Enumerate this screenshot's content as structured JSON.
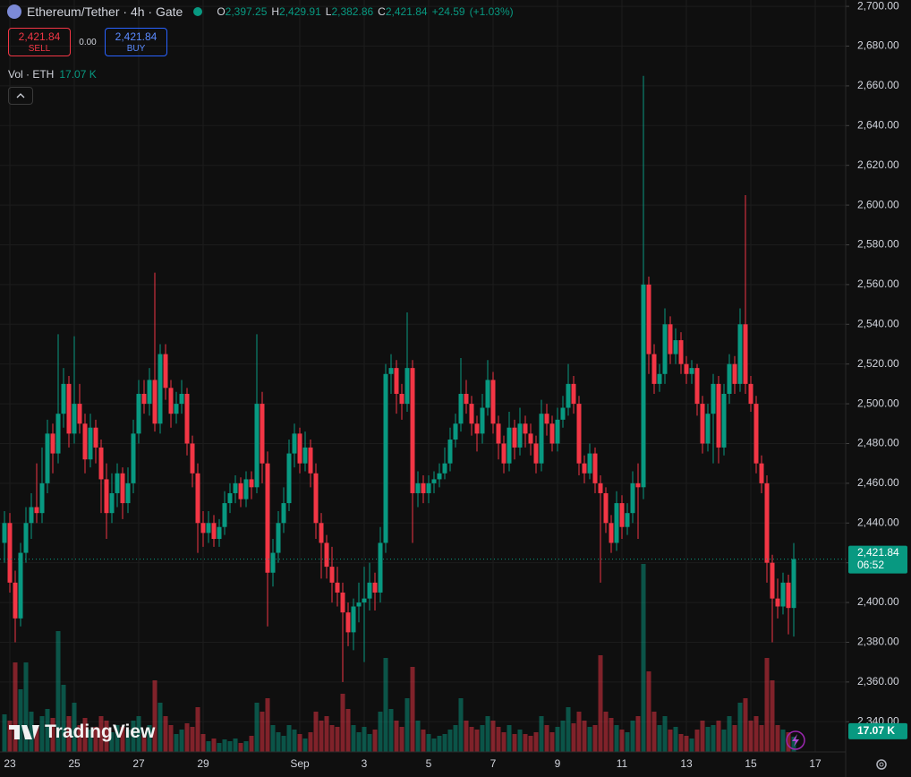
{
  "chart_data": {
    "type": "candlestick",
    "title": "Ethereum/Tether · 4h · Gate",
    "ohlc": [
      {
        "key": "O",
        "value": 2397.25,
        "label": "2,397.25"
      },
      {
        "key": "H",
        "value": 2429.91,
        "label": "2,429.91"
      },
      {
        "key": "L",
        "value": 2382.86,
        "label": "2,382.86"
      },
      {
        "key": "C",
        "value": 2421.84,
        "label": "2,421.84"
      }
    ],
    "change": {
      "value": 24.59,
      "label": "+24.59"
    },
    "change_pct": {
      "value": 1.03,
      "label": "(+1.03%)"
    },
    "sell": {
      "price": {
        "value": 2421.84,
        "label": "2,421.84"
      },
      "text": "SELL"
    },
    "spread": {
      "value": 0,
      "label": "0.00"
    },
    "buy": {
      "price": {
        "value": 2421.84,
        "label": "2,421.84"
      },
      "text": "BUY"
    },
    "volume_title": "Vol · ETH",
    "last_volume": {
      "value": 17070,
      "label": "17.07 K"
    },
    "last_price": {
      "value": 2421.84,
      "label": "2,421.84"
    },
    "countdown": "06:52",
    "watermark": "TradingView",
    "up_color": "#089981",
    "down_color": "#f23645",
    "grid": true,
    "ylim": [
      2324.8,
      2703.2
    ],
    "yticks": [
      {
        "value": 2340,
        "label": "2,340.00"
      },
      {
        "value": 2360,
        "label": "2,360.00"
      },
      {
        "value": 2380,
        "label": "2,380.00"
      },
      {
        "value": 2400,
        "label": "2,400.00"
      },
      {
        "value": 2420,
        "label": "2,420.00"
      },
      {
        "value": 2440,
        "label": "2,440.00"
      },
      {
        "value": 2460,
        "label": "2,460.00"
      },
      {
        "value": 2480,
        "label": "2,480.00"
      },
      {
        "value": 2500,
        "label": "2,500.00"
      },
      {
        "value": 2520,
        "label": "2,520.00"
      },
      {
        "value": 2540,
        "label": "2,540.00"
      },
      {
        "value": 2560,
        "label": "2,560.00"
      },
      {
        "value": 2580,
        "label": "2,580.00"
      },
      {
        "value": 2600,
        "label": "2,600.00"
      },
      {
        "value": 2620,
        "label": "2,620.00"
      },
      {
        "value": 2640,
        "label": "2,640.00"
      },
      {
        "value": 2660,
        "label": "2,660.00"
      },
      {
        "value": 2680,
        "label": "2,680.00"
      },
      {
        "value": 2700,
        "label": "2,700.00"
      }
    ],
    "xticks": [
      {
        "value": 1,
        "label": "23"
      },
      {
        "value": 13,
        "label": "25"
      },
      {
        "value": 25,
        "label": "27"
      },
      {
        "value": 37,
        "label": "29"
      },
      {
        "value": 55,
        "label": "Sep"
      },
      {
        "value": 67,
        "label": "3"
      },
      {
        "value": 79,
        "label": "5"
      },
      {
        "value": 91,
        "label": "7"
      },
      {
        "value": 103,
        "label": "9"
      },
      {
        "value": 115,
        "label": "11"
      },
      {
        "value": 127,
        "label": "13"
      },
      {
        "value": 139,
        "label": "15"
      },
      {
        "value": 151,
        "label": "17"
      }
    ],
    "candles": [
      [
        2430,
        2446,
        2420,
        2440
      ],
      [
        2440,
        2445,
        2405,
        2410
      ],
      [
        2410,
        2416,
        2380,
        2392
      ],
      [
        2392,
        2430,
        2388,
        2425
      ],
      [
        2425,
        2448,
        2420,
        2440
      ],
      [
        2440,
        2455,
        2432,
        2448
      ],
      [
        2448,
        2470,
        2440,
        2445
      ],
      [
        2445,
        2478,
        2440,
        2460
      ],
      [
        2460,
        2492,
        2455,
        2485
      ],
      [
        2485,
        2490,
        2465,
        2475
      ],
      [
        2475,
        2535,
        2470,
        2495
      ],
      [
        2495,
        2518,
        2488,
        2510
      ],
      [
        2510,
        2514,
        2478,
        2485
      ],
      [
        2485,
        2534,
        2480,
        2500
      ],
      [
        2500,
        2510,
        2485,
        2490
      ],
      [
        2490,
        2495,
        2465,
        2472
      ],
      [
        2472,
        2495,
        2468,
        2488
      ],
      [
        2488,
        2492,
        2470,
        2478
      ],
      [
        2478,
        2482,
        2445,
        2462
      ],
      [
        2462,
        2470,
        2432,
        2445
      ],
      [
        2445,
        2465,
        2440,
        2455
      ],
      [
        2455,
        2470,
        2448,
        2465
      ],
      [
        2465,
        2468,
        2442,
        2450
      ],
      [
        2450,
        2468,
        2445,
        2460
      ],
      [
        2460,
        2492,
        2455,
        2485
      ],
      [
        2485,
        2512,
        2480,
        2505
      ],
      [
        2505,
        2512,
        2495,
        2500
      ],
      [
        2500,
        2518,
        2494,
        2512
      ],
      [
        2512,
        2566,
        2486,
        2490
      ],
      [
        2490,
        2530,
        2485,
        2525
      ],
      [
        2525,
        2530,
        2502,
        2508
      ],
      [
        2508,
        2512,
        2488,
        2495
      ],
      [
        2495,
        2506,
        2490,
        2500
      ],
      [
        2500,
        2512,
        2495,
        2505
      ],
      [
        2505,
        2508,
        2474,
        2480
      ],
      [
        2480,
        2484,
        2458,
        2465
      ],
      [
        2465,
        2470,
        2425,
        2440
      ],
      [
        2440,
        2446,
        2428,
        2435
      ],
      [
        2435,
        2446,
        2430,
        2440
      ],
      [
        2440,
        2444,
        2428,
        2432
      ],
      [
        2432,
        2442,
        2428,
        2438
      ],
      [
        2438,
        2456,
        2434,
        2450
      ],
      [
        2450,
        2460,
        2445,
        2455
      ],
      [
        2455,
        2464,
        2450,
        2460
      ],
      [
        2460,
        2463,
        2448,
        2452
      ],
      [
        2452,
        2466,
        2448,
        2462
      ],
      [
        2462,
        2466,
        2452,
        2458
      ],
      [
        2458,
        2535,
        2455,
        2500
      ],
      [
        2500,
        2506,
        2460,
        2470
      ],
      [
        2470,
        2476,
        2388,
        2415
      ],
      [
        2415,
        2432,
        2408,
        2425
      ],
      [
        2425,
        2446,
        2420,
        2440
      ],
      [
        2440,
        2458,
        2435,
        2450
      ],
      [
        2450,
        2482,
        2446,
        2475
      ],
      [
        2475,
        2490,
        2468,
        2485
      ],
      [
        2485,
        2488,
        2465,
        2470
      ],
      [
        2470,
        2486,
        2466,
        2478
      ],
      [
        2478,
        2482,
        2458,
        2465
      ],
      [
        2465,
        2470,
        2432,
        2440
      ],
      [
        2440,
        2445,
        2412,
        2430
      ],
      [
        2430,
        2434,
        2412,
        2418
      ],
      [
        2418,
        2428,
        2400,
        2410
      ],
      [
        2410,
        2418,
        2398,
        2405
      ],
      [
        2405,
        2410,
        2360,
        2395
      ],
      [
        2395,
        2400,
        2378,
        2385
      ],
      [
        2385,
        2402,
        2376,
        2398
      ],
      [
        2398,
        2410,
        2390,
        2400
      ],
      [
        2400,
        2418,
        2370,
        2402
      ],
      [
        2402,
        2420,
        2396,
        2410
      ],
      [
        2410,
        2415,
        2396,
        2405
      ],
      [
        2405,
        2438,
        2400,
        2430
      ],
      [
        2430,
        2520,
        2425,
        2515
      ],
      [
        2515,
        2525,
        2505,
        2518
      ],
      [
        2518,
        2522,
        2495,
        2505
      ],
      [
        2505,
        2510,
        2492,
        2500
      ],
      [
        2500,
        2546,
        2496,
        2518
      ],
      [
        2518,
        2522,
        2430,
        2455
      ],
      [
        2455,
        2466,
        2448,
        2460
      ],
      [
        2460,
        2464,
        2450,
        2455
      ],
      [
        2455,
        2464,
        2450,
        2460
      ],
      [
        2460,
        2466,
        2455,
        2462
      ],
      [
        2462,
        2470,
        2458,
        2465
      ],
      [
        2465,
        2478,
        2462,
        2470
      ],
      [
        2470,
        2488,
        2466,
        2482
      ],
      [
        2482,
        2495,
        2478,
        2490
      ],
      [
        2490,
        2523,
        2486,
        2505
      ],
      [
        2505,
        2512,
        2495,
        2500
      ],
      [
        2500,
        2504,
        2484,
        2490
      ],
      [
        2490,
        2494,
        2476,
        2485
      ],
      [
        2485,
        2505,
        2480,
        2498
      ],
      [
        2498,
        2522,
        2494,
        2512
      ],
      [
        2512,
        2516,
        2485,
        2490
      ],
      [
        2490,
        2494,
        2472,
        2480
      ],
      [
        2480,
        2484,
        2465,
        2470
      ],
      [
        2470,
        2496,
        2466,
        2488
      ],
      [
        2488,
        2492,
        2472,
        2478
      ],
      [
        2478,
        2498,
        2474,
        2490
      ],
      [
        2490,
        2494,
        2478,
        2485
      ],
      [
        2485,
        2490,
        2474,
        2480
      ],
      [
        2480,
        2484,
        2465,
        2470
      ],
      [
        2470,
        2502,
        2466,
        2495
      ],
      [
        2495,
        2500,
        2484,
        2490
      ],
      [
        2490,
        2494,
        2476,
        2480
      ],
      [
        2480,
        2498,
        2476,
        2492
      ],
      [
        2492,
        2504,
        2488,
        2498
      ],
      [
        2498,
        2520,
        2494,
        2510
      ],
      [
        2510,
        2514,
        2495,
        2500
      ],
      [
        2500,
        2504,
        2464,
        2470
      ],
      [
        2470,
        2474,
        2460,
        2465
      ],
      [
        2465,
        2480,
        2462,
        2475
      ],
      [
        2475,
        2478,
        2455,
        2460
      ],
      [
        2460,
        2464,
        2410,
        2455
      ],
      [
        2455,
        2458,
        2435,
        2440
      ],
      [
        2440,
        2444,
        2425,
        2430
      ],
      [
        2430,
        2456,
        2426,
        2450
      ],
      [
        2450,
        2454,
        2432,
        2438
      ],
      [
        2438,
        2450,
        2434,
        2445
      ],
      [
        2445,
        2466,
        2440,
        2460
      ],
      [
        2460,
        2470,
        2432,
        2458
      ],
      [
        2458,
        2665,
        2452,
        2560
      ],
      [
        2560,
        2564,
        2515,
        2525
      ],
      [
        2525,
        2530,
        2505,
        2510
      ],
      [
        2510,
        2520,
        2506,
        2515
      ],
      [
        2515,
        2548,
        2510,
        2540
      ],
      [
        2540,
        2544,
        2520,
        2525
      ],
      [
        2525,
        2538,
        2520,
        2532
      ],
      [
        2532,
        2536,
        2515,
        2520
      ],
      [
        2520,
        2524,
        2510,
        2515
      ],
      [
        2515,
        2522,
        2510,
        2518
      ],
      [
        2518,
        2520,
        2494,
        2500
      ],
      [
        2500,
        2504,
        2475,
        2480
      ],
      [
        2480,
        2500,
        2476,
        2495
      ],
      [
        2495,
        2515,
        2470,
        2510
      ],
      [
        2510,
        2514,
        2470,
        2478
      ],
      [
        2478,
        2510,
        2474,
        2505
      ],
      [
        2505,
        2525,
        2500,
        2520
      ],
      [
        2520,
        2524,
        2505,
        2510
      ],
      [
        2510,
        2548,
        2506,
        2540
      ],
      [
        2540,
        2605,
        2505,
        2510
      ],
      [
        2510,
        2514,
        2496,
        2500
      ],
      [
        2500,
        2504,
        2465,
        2470
      ],
      [
        2470,
        2474,
        2455,
        2460
      ],
      [
        2460,
        2464,
        2410,
        2420
      ],
      [
        2420,
        2424,
        2380,
        2402
      ],
      [
        2402,
        2412,
        2392,
        2398
      ],
      [
        2398,
        2415,
        2394,
        2410
      ],
      [
        2410,
        2414,
        2384,
        2397.25
      ],
      [
        2397.25,
        2429.91,
        2382.86,
        2421.84
      ]
    ],
    "volumes": [
      42000,
      35000,
      100000,
      70000,
      100000,
      45000,
      30000,
      40000,
      48000,
      38000,
      135000,
      75000,
      40000,
      55000,
      30000,
      38000,
      25000,
      28000,
      40000,
      35000,
      22000,
      30000,
      28000,
      25000,
      35000,
      40000,
      20000,
      30000,
      80000,
      55000,
      40000,
      30000,
      20000,
      25000,
      32000,
      28000,
      50000,
      20000,
      12000,
      15000,
      10000,
      14000,
      12000,
      15000,
      10000,
      12000,
      18000,
      55000,
      45000,
      60000,
      30000,
      22000,
      18000,
      30000,
      25000,
      20000,
      15000,
      22000,
      45000,
      35000,
      40000,
      30000,
      28000,
      65000,
      48000,
      30000,
      22000,
      28000,
      20000,
      25000,
      45000,
      105000,
      48000,
      35000,
      28000,
      60000,
      95000,
      35000,
      25000,
      20000,
      15000,
      18000,
      20000,
      25000,
      30000,
      60000,
      35000,
      28000,
      25000,
      30000,
      40000,
      35000,
      28000,
      22000,
      30000,
      20000,
      25000,
      20000,
      18000,
      22000,
      40000,
      30000,
      22000,
      28000,
      35000,
      50000,
      32000,
      45000,
      35000,
      28000,
      30000,
      108000,
      45000,
      38000,
      30000,
      25000,
      22000,
      35000,
      40000,
      210000,
      90000,
      45000,
      30000,
      40000,
      25000,
      28000,
      20000,
      18000,
      15000,
      25000,
      35000,
      28000,
      30000,
      35000,
      25000,
      40000,
      30000,
      55000,
      60000,
      35000,
      40000,
      30000,
      105000,
      80000,
      30000,
      25000,
      22000,
      17070
    ]
  }
}
